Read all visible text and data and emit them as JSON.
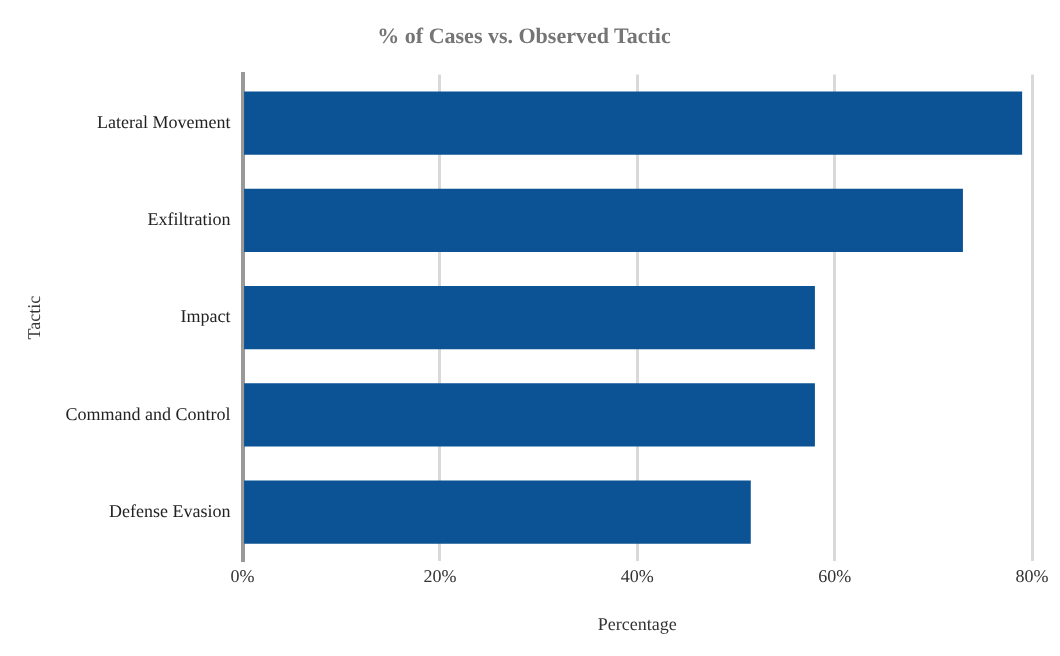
{
  "chart_data": {
    "type": "bar",
    "orientation": "horizontal",
    "title": "% of Cases vs. Observed Tactic",
    "xlabel": "Percentage",
    "ylabel": "Tactic",
    "categories": [
      "Lateral Movement",
      "Exfiltration",
      "Impact",
      "Command and Control",
      "Defense Evasion"
    ],
    "values": [
      79,
      73,
      58,
      58,
      51.5
    ],
    "color": "#0b5394",
    "xlim": [
      0,
      80
    ],
    "xticks": [
      {
        "value": 0,
        "label": "0%"
      },
      {
        "value": 20,
        "label": "20%"
      },
      {
        "value": 40,
        "label": "40%"
      },
      {
        "value": 60,
        "label": "60%"
      },
      {
        "value": 80,
        "label": "80%"
      }
    ],
    "grid": "x",
    "legend": false
  }
}
